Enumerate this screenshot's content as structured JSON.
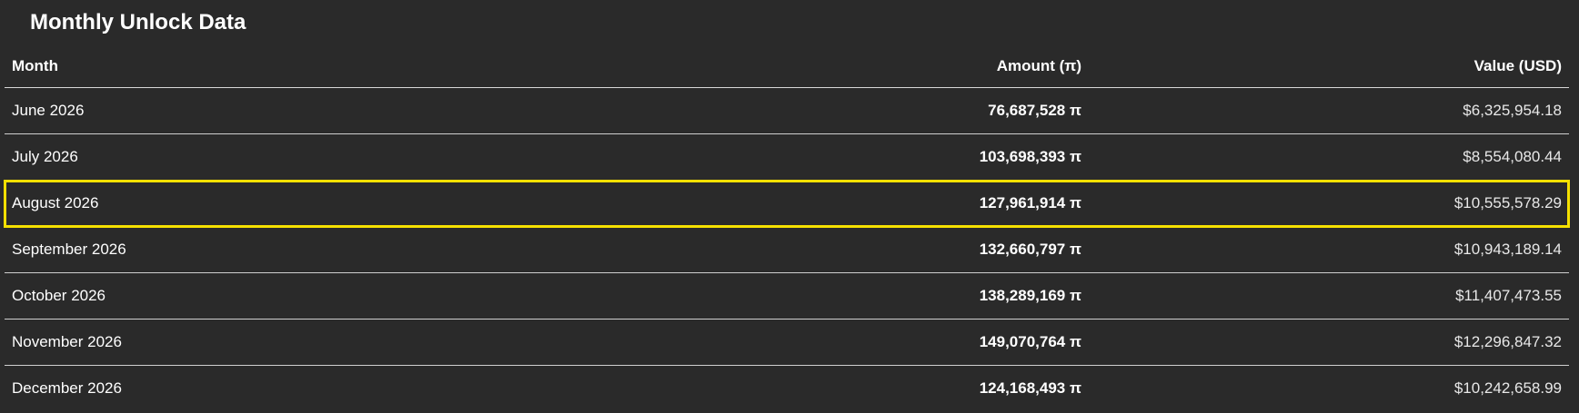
{
  "header": {
    "title": "Monthly Unlock Data"
  },
  "table": {
    "columns": [
      "Month",
      "Amount (π)",
      "Value (USD)"
    ],
    "rows": [
      [
        "June 2026",
        "76,687,528 π",
        "$6,325,954.18"
      ],
      [
        "July 2026",
        "103,698,393 π",
        "$8,554,080.44"
      ],
      [
        "August 2026",
        "127,961,914 π",
        "$10,555,578.29"
      ],
      [
        "September 2026",
        "132,660,797 π",
        "$10,943,189.14"
      ],
      [
        "October 2026",
        "138,289,169 π",
        "$11,407,473.55"
      ],
      [
        "November 2026",
        "149,070,764 π",
        "$12,296,847.32"
      ],
      [
        "December 2026",
        "124,168,493 π",
        "$10,242,658.99"
      ]
    ]
  }
}
